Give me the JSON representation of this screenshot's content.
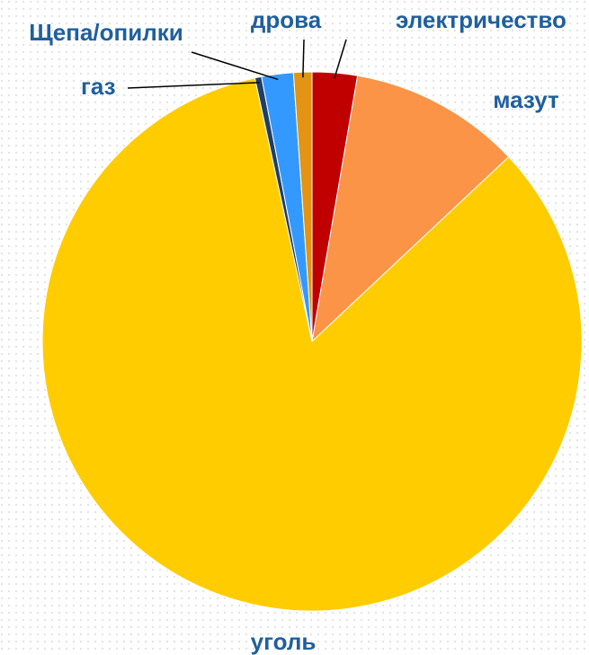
{
  "chart_data": {
    "type": "pie",
    "categories": [
      "электричество",
      "мазут",
      "уголь",
      "газ",
      "Щепа/опилки",
      "дрова"
    ],
    "values": [
      2.7,
      10.3,
      83.6,
      0.4,
      1.9,
      1.1
    ],
    "colors": [
      "#c00000",
      "#fb9446",
      "#ffcc00",
      "#1f3f66",
      "#3399ff",
      "#e39414"
    ]
  }
}
